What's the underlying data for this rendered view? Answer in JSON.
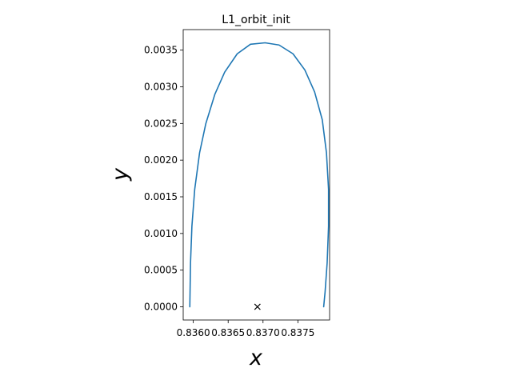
{
  "chart_data": {
    "type": "line",
    "title": "L1_orbit_init",
    "xlabel": "x",
    "ylabel": "y",
    "xlim": [
      0.835855,
      0.837955
    ],
    "ylim": [
      -0.00018,
      0.00378
    ],
    "grid": false,
    "legend": "none",
    "x_ticks": [
      0.836,
      0.8365,
      0.837,
      0.8375
    ],
    "x_tick_labels": [
      "0.8360",
      "0.8365",
      "0.8370",
      "0.8375"
    ],
    "y_ticks": [
      0.0,
      0.0005,
      0.001,
      0.0015,
      0.002,
      0.0025,
      0.003,
      0.0035
    ],
    "y_tick_labels": [
      "0.0000",
      "0.0005",
      "0.0010",
      "0.0015",
      "0.0020",
      "0.0025",
      "0.0030",
      "0.0035"
    ],
    "series": [
      {
        "color": "#1f77b4",
        "x": [
          0.83595,
          0.83596,
          0.83598,
          0.83602,
          0.83609,
          0.83618,
          0.83631,
          0.83645,
          0.83663,
          0.83682,
          0.83703,
          0.83723,
          0.83743,
          0.8376,
          0.83774,
          0.83785,
          0.83791,
          0.83794,
          0.83794,
          0.83792,
          0.83789,
          0.83787
        ],
        "y": [
          0.0,
          0.0006,
          0.0011,
          0.0016,
          0.0021,
          0.0025,
          0.0029,
          0.0032,
          0.00345,
          0.00358,
          0.0036,
          0.00357,
          0.00345,
          0.00323,
          0.00293,
          0.00255,
          0.0021,
          0.0016,
          0.0011,
          0.0006,
          0.0002,
          0.0
        ]
      }
    ],
    "markers": [
      {
        "symbol": "x",
        "color": "#000000",
        "x": 0.83692,
        "y": 0.0
      }
    ]
  }
}
